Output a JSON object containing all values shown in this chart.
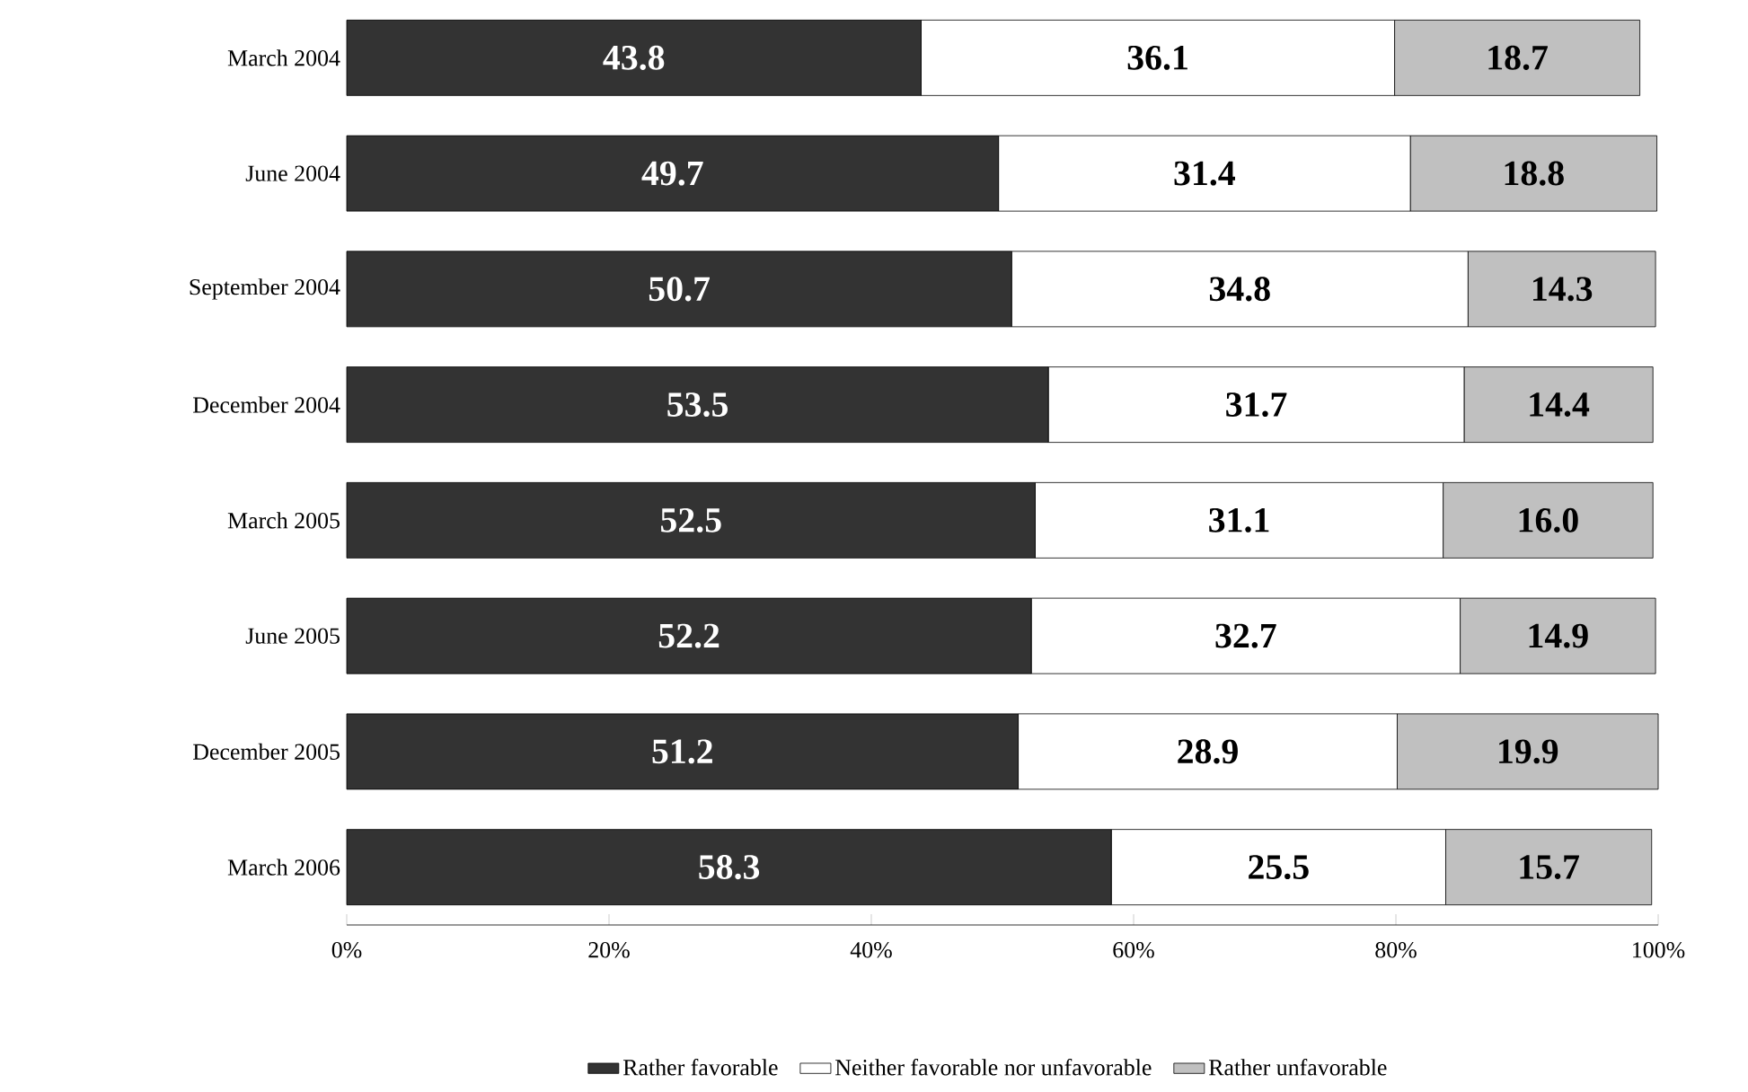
{
  "chart_data": {
    "type": "bar",
    "orientation": "horizontal",
    "stacked": true,
    "legend": "bottom",
    "categories": [
      "March 2004",
      "June 2004",
      "September 2004",
      "December 2004",
      "March 2005",
      "June 2005",
      "December 2005",
      "March 2006"
    ],
    "xlim": [
      0,
      100
    ],
    "xticks": [
      {
        "value": 0,
        "label": "0%"
      },
      {
        "value": 20,
        "label": "20%"
      },
      {
        "value": 40,
        "label": "40%"
      },
      {
        "value": 60,
        "label": "60%"
      },
      {
        "value": 80,
        "label": "80%"
      },
      {
        "value": 100,
        "label": "100%"
      }
    ],
    "series": [
      {
        "name": "Rather favorable",
        "color": "#333333",
        "values": [
          43.8,
          49.7,
          50.7,
          53.5,
          52.5,
          52.2,
          51.2,
          58.3
        ],
        "value_labels": [
          "43.8",
          "49.7",
          "50.7",
          "53.5",
          "52.5",
          "52.2",
          "51.2",
          "58.3"
        ]
      },
      {
        "name": "Neither favorable nor unfavorable",
        "color": "#ffffff",
        "values": [
          36.1,
          31.4,
          34.8,
          31.7,
          31.1,
          32.7,
          28.9,
          25.5
        ],
        "value_labels": [
          "36.1",
          "31.4",
          "34.8",
          "31.7",
          "31.1",
          "32.7",
          "28.9",
          "25.5"
        ]
      },
      {
        "name": "Rather unfavorable",
        "color": "#c0c0c0",
        "values": [
          18.7,
          18.8,
          14.3,
          14.4,
          16.0,
          14.9,
          19.9,
          15.7
        ],
        "value_labels": [
          "18.7",
          "18.8",
          "14.3",
          "14.4",
          "16.0",
          "14.9",
          "19.9",
          "15.7"
        ]
      }
    ]
  }
}
